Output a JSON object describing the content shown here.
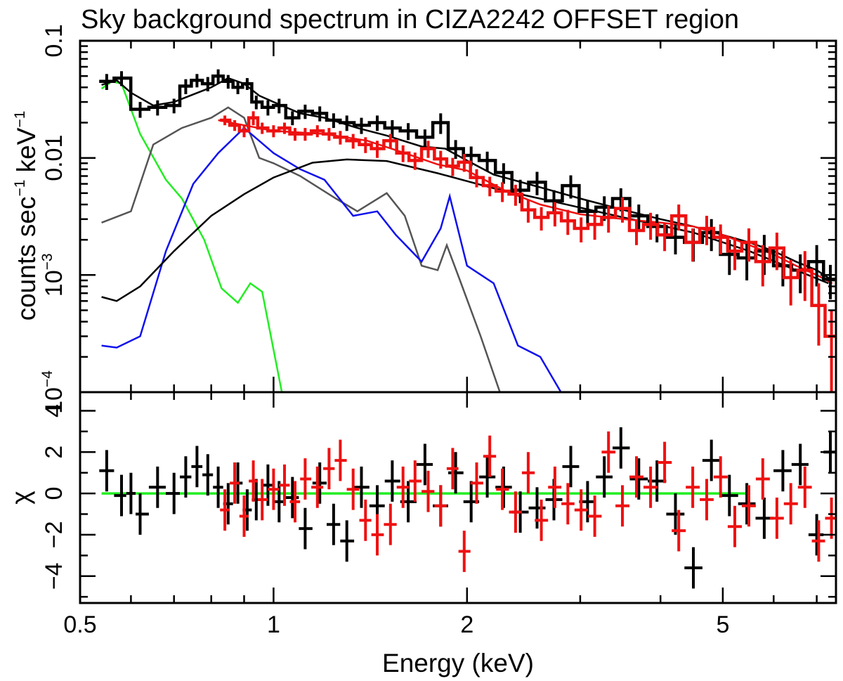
{
  "chart_data": {
    "type": "line",
    "title": "Sky background spectrum in CIZA2242 OFFSET region",
    "xlabel": "Energy (keV)",
    "xscale": "log",
    "xlim": [
      0.5,
      7.5
    ],
    "xticks": [
      {
        "value": 0.5,
        "label": "0.5"
      },
      {
        "value": 1,
        "label": "1"
      },
      {
        "value": 2,
        "label": "2"
      },
      {
        "value": 5,
        "label": "5"
      }
    ],
    "top_panel": {
      "ylabel_main": "counts sec",
      "ylabel_exp1": "−1",
      "ylabel_mid": " keV",
      "ylabel_exp2": "−1",
      "yscale": "log",
      "ylim": [
        0.0001,
        0.1
      ],
      "yticks": [
        {
          "value": 0.1,
          "label": "0.1"
        },
        {
          "value": 0.01,
          "label": "0.01"
        },
        {
          "value": 0.001,
          "base": "10",
          "exp": "−3"
        },
        {
          "value": 0.0001,
          "base": "10",
          "exp": "−4"
        }
      ],
      "model_curves": [
        {
          "name": "green component",
          "color": "#22ee22",
          "x": [
            0.54,
            0.56,
            0.58,
            0.62,
            0.68,
            0.72,
            0.78,
            0.83,
            0.88,
            0.92,
            0.96,
            1.0,
            1.03
          ],
          "y": [
            0.039,
            0.045,
            0.043,
            0.016,
            0.0065,
            0.0045,
            0.002,
            0.00077,
            0.00058,
            0.00085,
            0.00072,
            0.00023,
            0.0001
          ]
        },
        {
          "name": "gray component",
          "color": "#555555",
          "x": [
            0.54,
            0.6,
            0.65,
            0.72,
            0.8,
            0.85,
            0.9,
            0.95,
            1.0,
            1.1,
            1.25,
            1.35,
            1.5,
            1.6,
            1.7,
            1.8,
            1.86,
            1.95,
            2.1,
            2.25
          ],
          "y": [
            0.0028,
            0.0035,
            0.013,
            0.018,
            0.022,
            0.027,
            0.022,
            0.01,
            0.009,
            0.007,
            0.0045,
            0.0035,
            0.005,
            0.0032,
            0.0012,
            0.0011,
            0.0018,
            0.0009,
            0.0003,
            0.0001
          ]
        },
        {
          "name": "blue component",
          "color": "#1010ee",
          "x": [
            0.54,
            0.57,
            0.62,
            0.68,
            0.75,
            0.82,
            0.9,
            1.0,
            1.1,
            1.2,
            1.33,
            1.45,
            1.55,
            1.7,
            1.82,
            1.88,
            2.0,
            2.2,
            2.4,
            2.6,
            2.8
          ],
          "y": [
            0.00025,
            0.00024,
            0.0003,
            0.0016,
            0.006,
            0.011,
            0.018,
            0.011,
            0.008,
            0.0065,
            0.0032,
            0.0035,
            0.0022,
            0.0013,
            0.0025,
            0.0047,
            0.0012,
            0.00085,
            0.00025,
            0.0002,
            0.0001
          ]
        },
        {
          "name": "black component",
          "color": "#000000",
          "x": [
            0.54,
            0.57,
            0.62,
            0.7,
            0.8,
            0.9,
            1.0,
            1.15,
            1.3,
            1.5,
            1.8,
            2.2,
            2.8,
            3.5,
            4.5,
            5.5,
            6.5,
            7.3
          ],
          "y": [
            0.00065,
            0.0006,
            0.0008,
            0.0016,
            0.0032,
            0.0049,
            0.0068,
            0.0091,
            0.0097,
            0.0094,
            0.0074,
            0.0055,
            0.0041,
            0.0031,
            0.0023,
            0.0016,
            0.0011,
            0.00085
          ]
        },
        {
          "name": "total model (black)",
          "color": "#000000",
          "x": [
            0.54,
            0.57,
            0.6,
            0.65,
            0.7,
            0.8,
            0.85,
            0.9,
            0.95,
            1.0,
            1.1,
            1.2,
            1.35,
            1.5,
            1.7,
            1.85,
            2.0,
            2.2,
            2.6,
            3.0,
            3.5,
            4.0,
            4.5,
            5.0,
            5.5,
            6.0,
            6.5,
            7.0,
            7.4
          ],
          "y": [
            0.042,
            0.046,
            0.036,
            0.028,
            0.03,
            0.04,
            0.048,
            0.043,
            0.034,
            0.03,
            0.024,
            0.022,
            0.018,
            0.0155,
            0.0125,
            0.012,
            0.0095,
            0.0072,
            0.0056,
            0.0045,
            0.0036,
            0.003,
            0.0026,
            0.0022,
            0.0019,
            0.0016,
            0.0013,
            0.0011,
            0.0009
          ]
        },
        {
          "name": "total model (red)",
          "color": "#ee1111",
          "x": [
            0.82,
            0.9,
            1.0,
            1.2,
            1.4,
            1.6,
            1.8,
            2.0,
            2.3,
            2.6,
            3.0,
            3.5,
            4.0,
            4.5,
            5.0,
            5.5,
            6.0,
            6.5,
            7.0,
            7.4
          ],
          "y": [
            0.021,
            0.019,
            0.017,
            0.016,
            0.014,
            0.011,
            0.0088,
            0.0078,
            0.0052,
            0.004,
            0.0033,
            0.003,
            0.0028,
            0.0026,
            0.0022,
            0.0018,
            0.0015,
            0.0012,
            0.001,
            0.00085
          ]
        }
      ],
      "series": [
        {
          "name": "black spectrum",
          "color": "#000000",
          "x": [
            0.55,
            0.58,
            0.62,
            0.66,
            0.7,
            0.73,
            0.76,
            0.79,
            0.82,
            0.85,
            0.88,
            0.91,
            0.94,
            0.98,
            1.02,
            1.07,
            1.12,
            1.18,
            1.24,
            1.3,
            1.37,
            1.45,
            1.53,
            1.62,
            1.72,
            1.82,
            1.92,
            2.03,
            2.15,
            2.28,
            2.42,
            2.57,
            2.73,
            2.9,
            3.08,
            3.27,
            3.47,
            3.7,
            3.95,
            4.22,
            4.5,
            4.8,
            5.12,
            5.45,
            5.8,
            6.2,
            6.6,
            7.0,
            7.35
          ],
          "y": [
            0.045,
            0.048,
            0.026,
            0.027,
            0.028,
            0.041,
            0.046,
            0.043,
            0.05,
            0.045,
            0.04,
            0.043,
            0.03,
            0.027,
            0.028,
            0.022,
            0.025,
            0.024,
            0.021,
            0.02,
            0.019,
            0.02,
            0.018,
            0.017,
            0.015,
            0.02,
            0.012,
            0.0105,
            0.0095,
            0.0075,
            0.0053,
            0.0062,
            0.0043,
            0.0058,
            0.0035,
            0.0038,
            0.0045,
            0.0032,
            0.0026,
            0.0021,
            0.0019,
            0.0023,
            0.0015,
            0.0014,
            0.0016,
            0.0012,
            0.0011,
            0.0013,
            0.00092
          ],
          "err": [
            0.007,
            0.007,
            0.004,
            0.004,
            0.004,
            0.006,
            0.006,
            0.006,
            0.007,
            0.006,
            0.005,
            0.005,
            0.004,
            0.004,
            0.004,
            0.003,
            0.0035,
            0.0035,
            0.003,
            0.003,
            0.003,
            0.003,
            0.003,
            0.0028,
            0.0025,
            0.004,
            0.0022,
            0.002,
            0.0018,
            0.0015,
            0.0012,
            0.0014,
            0.001,
            0.0013,
            0.0008,
            0.0009,
            0.001,
            0.0008,
            0.0007,
            0.0006,
            0.0006,
            0.0007,
            0.0005,
            0.0005,
            0.0006,
            0.0004,
            0.0004,
            0.0005,
            0.0003
          ]
        },
        {
          "name": "red spectrum",
          "color": "#ee1111",
          "x": [
            0.84,
            0.87,
            0.9,
            0.93,
            0.96,
            1.0,
            1.04,
            1.08,
            1.12,
            1.17,
            1.22,
            1.27,
            1.33,
            1.39,
            1.45,
            1.52,
            1.59,
            1.66,
            1.74,
            1.82,
            1.9,
            1.98,
            2.07,
            2.17,
            2.27,
            2.38,
            2.49,
            2.61,
            2.74,
            2.87,
            3.01,
            3.16,
            3.32,
            3.49,
            3.67,
            3.86,
            4.06,
            4.27,
            4.49,
            4.72,
            4.96,
            5.22,
            5.49,
            5.77,
            6.07,
            6.38,
            6.71,
            7.05,
            7.38
          ],
          "y": [
            0.021,
            0.019,
            0.017,
            0.022,
            0.018,
            0.017,
            0.018,
            0.016,
            0.016,
            0.017,
            0.016,
            0.015,
            0.014,
            0.013,
            0.012,
            0.014,
            0.011,
            0.0095,
            0.012,
            0.0098,
            0.0085,
            0.0092,
            0.0068,
            0.0058,
            0.0052,
            0.0049,
            0.0036,
            0.0031,
            0.0034,
            0.0029,
            0.0025,
            0.0027,
            0.0031,
            0.0037,
            0.0024,
            0.0027,
            0.0022,
            0.0032,
            0.0019,
            0.0025,
            0.0021,
            0.0016,
            0.0019,
            0.0013,
            0.0017,
            0.00095,
            0.0011,
            0.00055,
            0.0003
          ],
          "err": [
            0.002,
            0.002,
            0.002,
            0.003,
            0.002,
            0.002,
            0.002,
            0.002,
            0.002,
            0.002,
            0.002,
            0.002,
            0.002,
            0.002,
            0.002,
            0.002,
            0.0018,
            0.0016,
            0.002,
            0.0017,
            0.0015,
            0.0016,
            0.0012,
            0.0011,
            0.001,
            0.001,
            0.0008,
            0.0007,
            0.0008,
            0.0007,
            0.0006,
            0.0007,
            0.0008,
            0.0009,
            0.0006,
            0.0007,
            0.0006,
            0.0008,
            0.0006,
            0.0007,
            0.0006,
            0.0005,
            0.0006,
            0.0005,
            0.0006,
            0.0004,
            0.0005,
            0.0003,
            0.0002
          ]
        }
      ]
    },
    "bottom_panel": {
      "ylabel": "χ",
      "ylim": [
        -5.3,
        4.9
      ],
      "yticks": [
        {
          "value": 4,
          "label": "4"
        },
        {
          "value": 2,
          "label": "2"
        },
        {
          "value": 0,
          "label": "0"
        },
        {
          "value": -2,
          "label": "−2"
        },
        {
          "value": -4,
          "label": "−4"
        }
      ],
      "zero_line": {
        "color": "#22ee22",
        "x": [
          0.54,
          5.5
        ],
        "y": 0
      },
      "series": [
        {
          "name": "black residuals",
          "color": "#000000",
          "x": [
            0.55,
            0.58,
            0.6,
            0.62,
            0.66,
            0.7,
            0.73,
            0.76,
            0.79,
            0.82,
            0.85,
            0.88,
            0.91,
            0.94,
            0.98,
            1.02,
            1.07,
            1.12,
            1.18,
            1.24,
            1.3,
            1.37,
            1.45,
            1.53,
            1.62,
            1.72,
            1.82,
            1.92,
            2.03,
            2.15,
            2.28,
            2.42,
            2.57,
            2.73,
            2.9,
            3.08,
            3.27,
            3.47,
            3.7,
            3.95,
            4.22,
            4.5,
            4.8,
            5.12,
            5.45,
            5.8,
            6.2,
            6.6,
            7.0,
            7.35
          ],
          "y": [
            1.1,
            -0.1,
            0.0,
            -1.0,
            0.3,
            0.0,
            0.8,
            1.3,
            0.9,
            0.3,
            -0.5,
            0.5,
            -0.8,
            -0.3,
            0.4,
            -0.4,
            -0.2,
            -1.7,
            0.5,
            -1.5,
            -2.3,
            0.3,
            -0.6,
            0.6,
            -0.4,
            1.4,
            -0.6,
            1.0,
            -0.4,
            0.8,
            0.3,
            -0.9,
            -0.7,
            -0.3,
            1.3,
            -0.4,
            0.8,
            2.2,
            0.7,
            0.6,
            -1.0,
            -3.6,
            1.6,
            -0.1,
            -0.5,
            -1.2,
            1.1,
            1.4,
            -2.0,
            2.0
          ],
          "err": [
            1,
            1,
            1,
            1,
            1,
            1,
            1,
            1,
            1,
            1,
            1,
            1,
            1,
            1,
            1,
            1,
            1,
            1,
            1,
            1,
            1,
            1,
            1,
            1,
            1,
            1,
            1,
            1,
            1,
            1,
            1,
            1,
            1,
            1,
            1,
            1,
            1,
            1,
            1,
            1,
            1,
            1,
            1,
            1,
            1,
            1,
            1,
            1,
            1,
            1
          ]
        },
        {
          "name": "red residuals",
          "color": "#ee1111",
          "x": [
            0.84,
            0.87,
            0.9,
            0.93,
            0.96,
            1.0,
            1.04,
            1.08,
            1.12,
            1.17,
            1.22,
            1.27,
            1.33,
            1.39,
            1.45,
            1.52,
            1.59,
            1.66,
            1.74,
            1.82,
            1.9,
            1.98,
            2.07,
            2.17,
            2.27,
            2.38,
            2.49,
            2.61,
            2.74,
            2.87,
            3.01,
            3.16,
            3.32,
            3.49,
            3.67,
            3.86,
            4.06,
            4.27,
            4.49,
            4.72,
            4.96,
            5.22,
            5.49,
            5.77,
            6.07,
            6.38,
            6.71,
            7.05,
            7.38
          ],
          "y": [
            -0.8,
            0.5,
            -1.1,
            0.6,
            -0.3,
            0.2,
            0.4,
            -0.4,
            0.7,
            0.3,
            1.2,
            1.6,
            0.2,
            -1.3,
            -2.0,
            -1.5,
            0.3,
            0.6,
            0.1,
            -0.6,
            1.2,
            -2.8,
            0.5,
            1.8,
            0.2,
            -0.9,
            1.0,
            -1.3,
            0.3,
            -0.5,
            -0.8,
            -1.1,
            2.0,
            -0.6,
            0.8,
            0.3,
            1.5,
            -1.8,
            0.3,
            -0.3,
            0.8,
            -1.6,
            -0.6,
            0.7,
            -1.2,
            -0.5,
            0.3,
            -2.3,
            -1.2
          ],
          "err": [
            1,
            1,
            1,
            1,
            1,
            1,
            1,
            1,
            1,
            1,
            1,
            1,
            1,
            1,
            1,
            1,
            1,
            1,
            1,
            1,
            1,
            1,
            1,
            1,
            1,
            1,
            1,
            1,
            1,
            1,
            1,
            1,
            1,
            1,
            1,
            1,
            1,
            1,
            1,
            1,
            1,
            1,
            1,
            1,
            1,
            1,
            1,
            1,
            1
          ]
        }
      ]
    }
  }
}
